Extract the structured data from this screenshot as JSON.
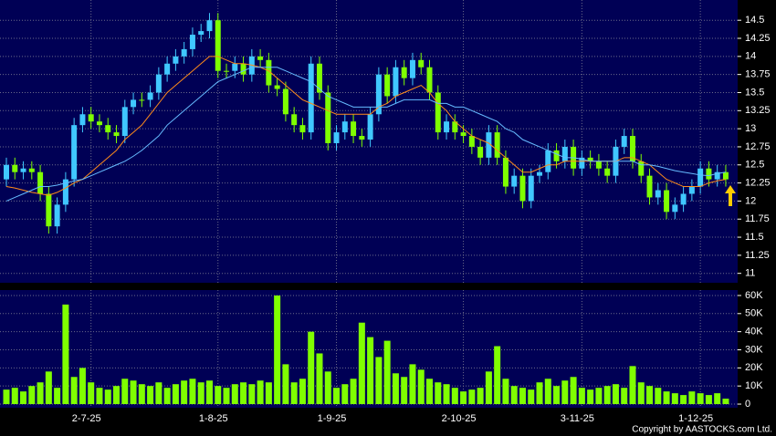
{
  "chart_data": [
    {
      "type": "candlestick",
      "categories": [
        null,
        null,
        null,
        null,
        null,
        null,
        null,
        null,
        null,
        null,
        "2-7-25",
        null,
        null,
        null,
        null,
        null,
        null,
        null,
        null,
        null,
        null,
        null,
        null,
        null,
        null,
        "1-8-25",
        null,
        null,
        null,
        null,
        null,
        null,
        null,
        null,
        null,
        null,
        null,
        null,
        null,
        "1-9-25",
        null,
        null,
        null,
        null,
        null,
        null,
        null,
        null,
        null,
        null,
        null,
        null,
        null,
        null,
        "2-10-25",
        null,
        null,
        null,
        null,
        null,
        null,
        null,
        null,
        null,
        null,
        null,
        null,
        null,
        "3-11-25",
        null,
        null,
        null,
        null,
        null,
        null,
        null,
        null,
        null,
        null,
        null,
        null,
        null,
        "1-12-25",
        null,
        null,
        null
      ],
      "open": [
        12.3,
        12.5,
        12.4,
        12.45,
        12.4,
        12.1,
        11.65,
        11.95,
        12.3,
        13.05,
        13.2,
        13.1,
        13.05,
        12.95,
        12.9,
        13.3,
        13.4,
        13.4,
        13.5,
        13.75,
        13.9,
        14.0,
        14.1,
        14.3,
        14.35,
        14.5,
        13.8,
        13.8,
        13.9,
        13.75,
        14.0,
        13.95,
        13.6,
        13.55,
        13.2,
        13.05,
        12.95,
        13.9,
        13.5,
        12.8,
        12.95,
        13.1,
        12.9,
        12.85,
        13.2,
        13.75,
        13.45,
        13.85,
        13.7,
        13.95,
        13.85,
        13.5,
        12.95,
        13.1,
        12.95,
        12.9,
        12.75,
        12.6,
        12.95,
        12.6,
        12.2,
        12.35,
        12.0,
        12.35,
        12.4,
        12.7,
        12.55,
        12.75,
        12.45,
        12.6,
        12.55,
        12.45,
        12.35,
        12.75,
        12.9,
        12.55,
        12.35,
        12.05,
        12.15,
        11.85,
        11.95,
        12.1,
        12.2,
        12.45,
        12.3,
        12.4
      ],
      "high": [
        12.6,
        12.6,
        12.55,
        12.55,
        12.5,
        12.2,
        12.05,
        12.4,
        13.15,
        13.3,
        13.3,
        13.2,
        13.15,
        13.05,
        13.4,
        13.5,
        13.5,
        13.6,
        13.85,
        14.0,
        14.1,
        14.2,
        14.4,
        14.45,
        14.6,
        14.6,
        13.9,
        14.0,
        14.0,
        14.1,
        14.1,
        14.05,
        13.7,
        13.65,
        13.3,
        13.15,
        14.0,
        14.0,
        13.6,
        13.05,
        13.2,
        13.2,
        13.0,
        13.3,
        13.85,
        13.85,
        13.95,
        13.95,
        14.05,
        14.05,
        13.95,
        13.6,
        13.2,
        13.2,
        13.05,
        13.0,
        12.85,
        13.05,
        13.05,
        12.7,
        12.45,
        12.45,
        12.45,
        12.5,
        12.8,
        12.8,
        12.85,
        12.85,
        12.7,
        12.7,
        12.65,
        12.55,
        12.85,
        13.0,
        13.0,
        12.65,
        12.45,
        12.25,
        12.25,
        12.05,
        12.2,
        12.3,
        12.55,
        12.55,
        12.5,
        12.5
      ],
      "low": [
        12.2,
        12.3,
        12.3,
        12.3,
        12.0,
        11.55,
        11.55,
        11.85,
        12.2,
        12.95,
        13.0,
        12.95,
        12.85,
        12.8,
        12.8,
        13.2,
        13.3,
        13.3,
        13.4,
        13.65,
        13.8,
        13.9,
        14.0,
        14.2,
        14.25,
        13.7,
        13.7,
        13.7,
        13.65,
        13.65,
        13.85,
        13.5,
        13.45,
        13.1,
        12.95,
        12.85,
        12.85,
        13.4,
        12.7,
        12.7,
        12.85,
        12.8,
        12.75,
        12.75,
        13.1,
        13.35,
        13.35,
        13.6,
        13.6,
        13.75,
        13.4,
        12.85,
        12.85,
        12.85,
        12.8,
        12.65,
        12.5,
        12.5,
        12.5,
        12.1,
        12.1,
        11.9,
        11.9,
        12.25,
        12.3,
        12.45,
        12.45,
        12.35,
        12.35,
        12.45,
        12.35,
        12.25,
        12.25,
        12.65,
        12.45,
        12.25,
        11.95,
        11.95,
        11.75,
        11.75,
        11.85,
        12.0,
        12.1,
        12.2,
        12.2,
        12.2
      ],
      "close": [
        12.5,
        12.4,
        12.45,
        12.4,
        12.1,
        11.65,
        11.95,
        12.3,
        13.05,
        13.2,
        13.1,
        13.05,
        12.95,
        12.9,
        13.3,
        13.4,
        13.4,
        13.5,
        13.75,
        13.9,
        14.0,
        14.1,
        14.3,
        14.35,
        14.5,
        13.8,
        13.8,
        13.9,
        13.75,
        14.0,
        13.95,
        13.6,
        13.55,
        13.2,
        13.05,
        12.95,
        13.9,
        13.5,
        12.8,
        12.95,
        13.1,
        12.9,
        12.85,
        13.2,
        13.75,
        13.45,
        13.85,
        13.7,
        13.95,
        13.85,
        13.5,
        12.95,
        13.1,
        12.95,
        12.9,
        12.75,
        12.6,
        12.95,
        12.6,
        12.2,
        12.35,
        12.0,
        12.35,
        12.4,
        12.7,
        12.55,
        12.75,
        12.45,
        12.6,
        12.55,
        12.45,
        12.35,
        12.75,
        12.9,
        12.55,
        12.35,
        12.05,
        12.15,
        11.85,
        11.95,
        12.1,
        12.2,
        12.45,
        12.3,
        12.4,
        12.3
      ],
      "up_color": "#40c8ff",
      "down_color": "#7fff00",
      "series": [
        {
          "color": "#ff8c1a",
          "values": [
            12.2,
            12.18,
            12.15,
            12.12,
            12.1,
            12.08,
            12.12,
            12.18,
            12.25,
            12.3,
            12.4,
            12.5,
            12.6,
            12.7,
            12.85,
            12.95,
            13.05,
            13.2,
            13.35,
            13.5,
            13.6,
            13.7,
            13.8,
            13.9,
            14.0,
            14.0,
            13.95,
            13.9,
            13.9,
            13.88,
            13.85,
            13.8,
            13.7,
            13.6,
            13.5,
            13.4,
            13.35,
            13.3,
            13.25,
            13.2,
            13.2,
            13.2,
            13.2,
            13.2,
            13.3,
            13.35,
            13.45,
            13.5,
            13.55,
            13.6,
            13.5,
            13.35,
            13.25,
            13.1,
            13.0,
            12.9,
            12.85,
            12.8,
            12.7,
            12.6,
            12.5,
            12.4,
            12.4,
            12.45,
            12.5,
            12.5,
            12.55,
            12.55,
            12.55,
            12.55,
            12.55,
            12.55,
            12.55,
            12.6,
            12.6,
            12.55,
            12.5,
            12.4,
            12.3,
            12.25,
            12.2,
            12.2,
            12.2,
            12.25,
            12.28,
            12.3
          ]
        },
        {
          "color": "#66bbff",
          "values": [
            12.0,
            12.05,
            12.1,
            12.15,
            12.2,
            12.2,
            12.22,
            12.25,
            12.28,
            12.3,
            12.35,
            12.4,
            12.45,
            12.5,
            12.55,
            12.62,
            12.7,
            12.8,
            12.9,
            13.05,
            13.15,
            13.25,
            13.35,
            13.45,
            13.55,
            13.65,
            13.7,
            13.75,
            13.8,
            13.85,
            13.85,
            13.85,
            13.85,
            13.8,
            13.75,
            13.7,
            13.65,
            13.55,
            13.45,
            13.4,
            13.35,
            13.3,
            13.3,
            13.3,
            13.3,
            13.3,
            13.35,
            13.4,
            13.4,
            13.4,
            13.4,
            13.35,
            13.35,
            13.3,
            13.3,
            13.25,
            13.2,
            13.15,
            13.1,
            13.0,
            12.95,
            12.85,
            12.8,
            12.75,
            12.7,
            12.65,
            12.6,
            12.6,
            12.58,
            12.55,
            12.55,
            12.55,
            12.55,
            12.55,
            12.55,
            12.5,
            12.5,
            12.48,
            12.45,
            12.42,
            12.4,
            12.38,
            12.36,
            12.35,
            12.38,
            12.4
          ]
        }
      ],
      "ylim": [
        10.87,
        14.78
      ],
      "yticks": [
        11,
        11.25,
        11.5,
        11.75,
        12,
        12.25,
        12.5,
        12.75,
        13,
        13.25,
        13.5,
        13.75,
        14,
        14.25,
        14.5
      ],
      "grid": true
    },
    {
      "type": "bar",
      "values": [
        8000,
        9000,
        7000,
        10000,
        12000,
        18000,
        9000,
        55000,
        15000,
        20000,
        12000,
        9000,
        8000,
        10000,
        14000,
        13000,
        11000,
        10000,
        12000,
        9000,
        11000,
        13000,
        14000,
        12000,
        13000,
        10000,
        9000,
        11000,
        12000,
        11000,
        13000,
        12000,
        60000,
        22000,
        12000,
        14000,
        40000,
        28000,
        18000,
        9000,
        11000,
        14000,
        45000,
        37000,
        26000,
        35000,
        17000,
        15000,
        22000,
        19000,
        14000,
        12000,
        11000,
        9000,
        7000,
        8000,
        9000,
        18000,
        32000,
        14000,
        10000,
        9000,
        8000,
        12000,
        14000,
        10000,
        13000,
        15000,
        9000,
        8000,
        9000,
        10000,
        11000,
        9000,
        21000,
        12000,
        10000,
        9000,
        7000,
        6000,
        5000,
        7000,
        6000,
        5000,
        6000,
        3000
      ],
      "color": "#80ff00",
      "ylim": [
        -2000,
        63000
      ],
      "yticks": [
        0,
        {
          "value": 10000,
          "label": "10K"
        },
        {
          "value": 20000,
          "label": "20K"
        },
        {
          "value": 30000,
          "label": "30K"
        },
        {
          "value": 40000,
          "label": "40K"
        },
        {
          "value": 50000,
          "label": "50K"
        },
        {
          "value": 60000,
          "label": "60K"
        }
      ],
      "grid": true
    }
  ],
  "copyright": "Copyright by AASTOCKS.com Ltd."
}
